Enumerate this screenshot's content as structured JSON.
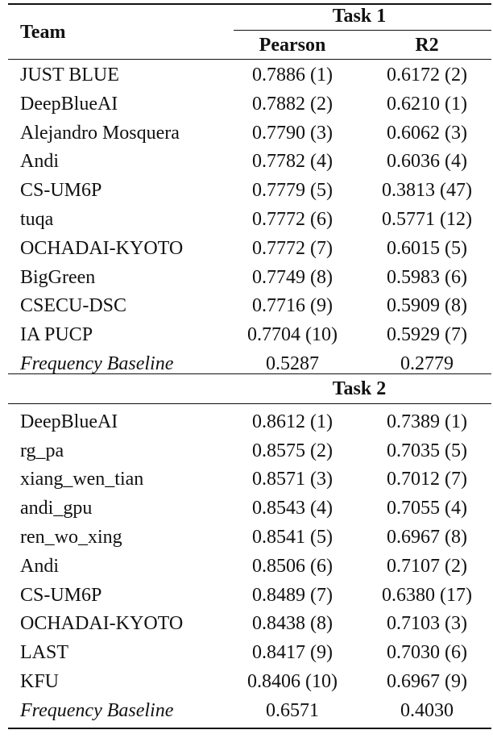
{
  "table": {
    "header": {
      "team": "Team",
      "pearson": "Pearson",
      "r2": "R2"
    },
    "sections": [
      {
        "title": "Task 1",
        "rows": [
          [
            "JUST BLUE",
            "0.7886 (1)",
            "0.6172 (2)"
          ],
          [
            "DeepBlueAI",
            "0.7882 (2)",
            "0.6210 (1)"
          ],
          [
            "Alejandro Mosquera",
            "0.7790 (3)",
            "0.6062 (3)"
          ],
          [
            "Andi",
            "0.7782 (4)",
            "0.6036 (4)"
          ],
          [
            "CS-UM6P",
            "0.7779 (5)",
            "0.3813 (47)"
          ],
          [
            "tuqa",
            "0.7772 (6)",
            "0.5771 (12)"
          ],
          [
            "OCHADAI-KYOTO",
            "0.7772 (7)",
            "0.6015 (5)"
          ],
          [
            "BigGreen",
            "0.7749 (8)",
            "0.5983 (6)"
          ],
          [
            "CSECU-DSC",
            "0.7716 (9)",
            "0.5909 (8)"
          ],
          [
            "IA PUCP",
            "0.7704 (10)",
            "0.5929 (7)"
          ],
          [
            "Frequency Baseline",
            "0.5287",
            "0.2779"
          ]
        ]
      },
      {
        "title": "Task 2",
        "rows": [
          [
            "DeepBlueAI",
            "0.8612 (1)",
            "0.7389 (1)"
          ],
          [
            "rg_pa",
            "0.8575 (2)",
            "0.7035 (5)"
          ],
          [
            "xiang_wen_tian",
            "0.8571 (3)",
            "0.7012 (7)"
          ],
          [
            "andi_gpu",
            "0.8543 (4)",
            "0.7055 (4)"
          ],
          [
            "ren_wo_xing",
            "0.8541 (5)",
            "0.6967 (8)"
          ],
          [
            "Andi",
            "0.8506 (6)",
            "0.7107 (2)"
          ],
          [
            "CS-UM6P",
            "0.8489 (7)",
            "0.6380 (17)"
          ],
          [
            "OCHADAI-KYOTO",
            "0.8438 (8)",
            "0.7103 (3)"
          ],
          [
            "LAST",
            "0.8417 (9)",
            "0.7030 (6)"
          ],
          [
            "KFU",
            "0.8406 (10)",
            "0.6967 (9)"
          ],
          [
            "Frequency Baseline",
            "0.6571",
            "0.4030"
          ]
        ]
      }
    ]
  }
}
